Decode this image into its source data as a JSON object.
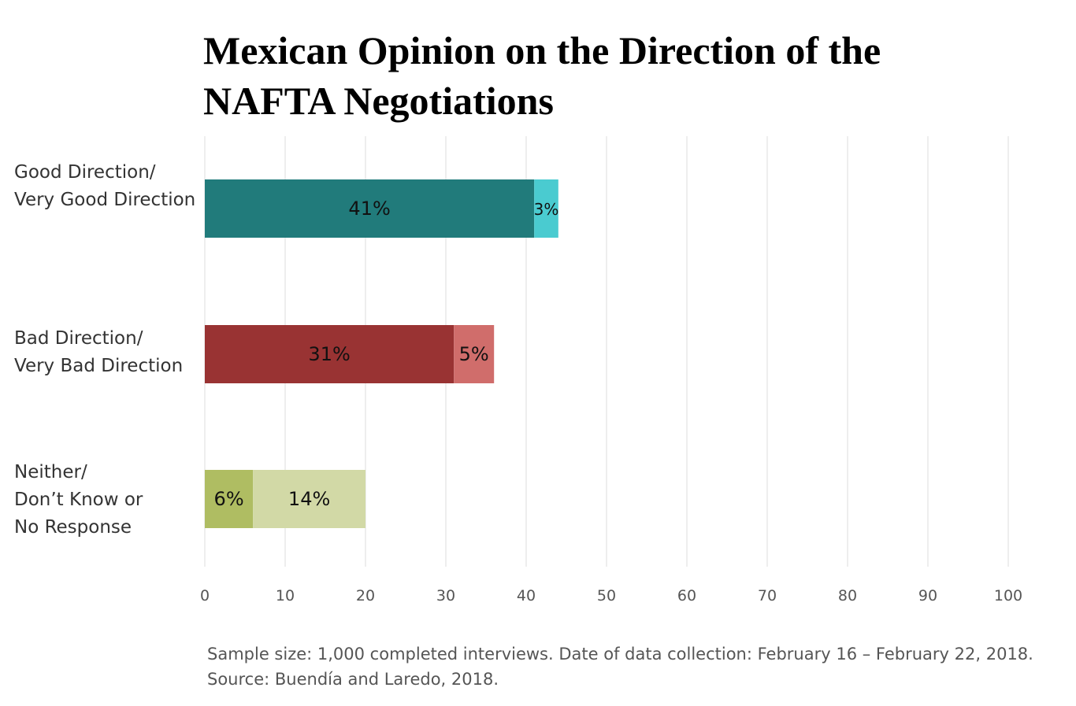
{
  "chart_data": {
    "type": "bar",
    "orientation": "horizontal",
    "stacked": true,
    "title": "Mexican Opinion on the Direction of the NAFTA Negotiations",
    "categories": [
      "Good Direction/\nVery Good Direction",
      "Bad Direction/\nVery Bad Direction",
      "Neither/\nDon’t Know or\nNo Response"
    ],
    "series": [
      {
        "values": [
          41,
          31,
          6
        ],
        "labels": [
          "41%",
          "31%",
          "6%"
        ],
        "colors": [
          "#217b7b",
          "#993333",
          "#afbd62"
        ]
      },
      {
        "values": [
          3,
          5,
          14
        ],
        "labels": [
          "3%",
          "5%",
          "14%"
        ],
        "colors": [
          "#4acbd0",
          "#d06d6b",
          "#d2d9a6"
        ]
      }
    ],
    "xlim": [
      0,
      100
    ],
    "xticks": [
      "0",
      "10",
      "20",
      "30",
      "40",
      "50",
      "60",
      "70",
      "80",
      "90",
      "100"
    ],
    "grid": true,
    "legend": "none"
  },
  "footnote": {
    "line1": "Sample size: 1,000 completed interviews. Date of data collection: February 16 – February 22, 2018.",
    "line2": "Source: Buendía and Laredo, 2018."
  }
}
